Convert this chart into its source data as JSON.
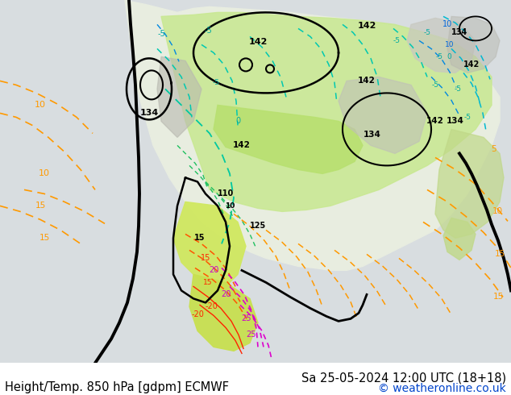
{
  "bottom_left_text": "Height/Temp. 850 hPa [gdpm] ECMWF",
  "bottom_right_text": "Sa 25-05-2024 12:00 UTC (18+18)",
  "bottom_right_text2": "© weatheronline.co.uk",
  "fig_width": 6.34,
  "fig_height": 4.9,
  "dpi": 100,
  "bg_color": "#ffffff",
  "text_color_left": "#000000",
  "text_color_right": "#000000",
  "text_color_copy": "#0044cc",
  "font_size": 10.5
}
